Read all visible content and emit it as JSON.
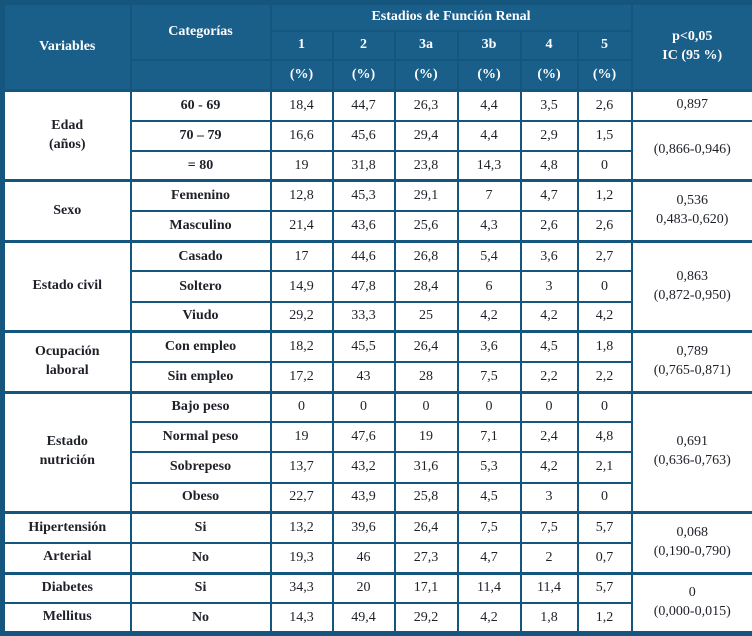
{
  "colors": {
    "header_fill": "#1A5E8A",
    "grid_border": "#15567E",
    "cell_text": "#1E2128",
    "header_text": "#FFFFFF"
  },
  "table": {
    "header": {
      "variables": "Variables",
      "categories": "Categorías",
      "stages_title": "Estadios de Función Renal",
      "stage_cols": [
        "1",
        "2",
        "3a",
        "3b",
        "4",
        "5"
      ],
      "percent_label": "(%)",
      "p_line1": "p<0,05",
      "p_line2": "IC (95 %)"
    },
    "groups": [
      {
        "variable_cells": [
          {
            "lines": [
              "Edad",
              "(años)"
            ],
            "rowspan": 3
          }
        ],
        "rows": [
          {
            "category": "60 - 69",
            "values": [
              "18,4",
              "44,7",
              "26,3",
              "4,4",
              "3,5",
              "2,6"
            ]
          },
          {
            "category": "70 – 79",
            "values": [
              "16,6",
              "45,6",
              "29,4",
              "4,4",
              "2,9",
              "1,5"
            ]
          },
          {
            "category": "= 80",
            "values": [
              "19",
              "31,8",
              "23,8",
              "14,3",
              "4,8",
              "0"
            ]
          }
        ],
        "p_cells": [
          {
            "lines": [
              "0,897"
            ],
            "rowspan": 1
          },
          {
            "lines": [
              "(0,866-0,946)"
            ],
            "rowspan": 2
          }
        ]
      },
      {
        "variable_cells": [
          {
            "lines": [
              "Sexo"
            ],
            "rowspan": 2
          }
        ],
        "rows": [
          {
            "category": "Femenino",
            "values": [
              "12,8",
              "45,3",
              "29,1",
              "7",
              "4,7",
              "1,2"
            ]
          },
          {
            "category": "Masculino",
            "values": [
              "21,4",
              "43,6",
              "25,6",
              "4,3",
              "2,6",
              "2,6"
            ]
          }
        ],
        "p_cells": [
          {
            "lines": [
              "0,536",
              "0,483-0,620)"
            ],
            "rowspan": 2
          }
        ]
      },
      {
        "variable_cells": [
          {
            "lines": [
              "Estado civil"
            ],
            "rowspan": 3
          }
        ],
        "rows": [
          {
            "category": "Casado",
            "values": [
              "17",
              "44,6",
              "26,8",
              "5,4",
              "3,6",
              "2,7"
            ]
          },
          {
            "category": "Soltero",
            "values": [
              "14,9",
              "47,8",
              "28,4",
              "6",
              "3",
              "0"
            ]
          },
          {
            "category": "Viudo",
            "values": [
              "29,2",
              "33,3",
              "25",
              "4,2",
              "4,2",
              "4,2"
            ]
          }
        ],
        "p_cells": [
          {
            "lines": [
              "0,863",
              "(0,872-0,950)"
            ],
            "rowspan": 3
          }
        ]
      },
      {
        "variable_cells": [
          {
            "lines": [
              "Ocupación",
              "laboral"
            ],
            "rowspan": 2
          }
        ],
        "rows": [
          {
            "category": "Con empleo",
            "values": [
              "18,2",
              "45,5",
              "26,4",
              "3,6",
              "4,5",
              "1,8"
            ]
          },
          {
            "category": "Sin empleo",
            "values": [
              "17,2",
              "43",
              "28",
              "7,5",
              "2,2",
              "2,2"
            ]
          }
        ],
        "p_cells": [
          {
            "lines": [
              "0,789",
              "(0,765-0,871)"
            ],
            "rowspan": 2
          }
        ]
      },
      {
        "variable_cells": [
          {
            "lines": [
              "Estado",
              "nutrición"
            ],
            "rowspan": 4
          }
        ],
        "rows": [
          {
            "category": "Bajo peso",
            "values": [
              "0",
              "0",
              "0",
              "0",
              "0",
              "0"
            ]
          },
          {
            "category": "Normal peso",
            "values": [
              "19",
              "47,6",
              "19",
              "7,1",
              "2,4",
              "4,8"
            ]
          },
          {
            "category": "Sobrepeso",
            "values": [
              "13,7",
              "43,2",
              "31,6",
              "5,3",
              "4,2",
              "2,1"
            ]
          },
          {
            "category": "Obeso",
            "values": [
              "22,7",
              "43,9",
              "25,8",
              "4,5",
              "3",
              "0"
            ]
          }
        ],
        "p_cells": [
          {
            "lines": [
              "0,691",
              "(0,636-0,763)"
            ],
            "rowspan": 4
          }
        ]
      },
      {
        "variable_cells": [
          {
            "lines": [
              "Hipertensión"
            ],
            "rowspan": 1
          },
          {
            "lines": [
              "Arterial"
            ],
            "rowspan": 1
          }
        ],
        "rows": [
          {
            "category": "Si",
            "values": [
              "13,2",
              "39,6",
              "26,4",
              "7,5",
              "7,5",
              "5,7"
            ]
          },
          {
            "category": "No",
            "values": [
              "19,3",
              "46",
              "27,3",
              "4,7",
              "2",
              "0,7"
            ]
          }
        ],
        "p_cells": [
          {
            "lines": [
              "0,068",
              "(0,190-0,790)"
            ],
            "rowspan": 2
          }
        ]
      },
      {
        "variable_cells": [
          {
            "lines": [
              "Diabetes"
            ],
            "rowspan": 1
          },
          {
            "lines": [
              "Mellitus"
            ],
            "rowspan": 1
          }
        ],
        "rows": [
          {
            "category": "Si",
            "values": [
              "34,3",
              "20",
              "17,1",
              "11,4",
              "11,4",
              "5,7"
            ]
          },
          {
            "category": "No",
            "values": [
              "14,3",
              "49,4",
              "29,2",
              "4,2",
              "1,8",
              "1,2"
            ]
          }
        ],
        "p_cells": [
          {
            "lines": [
              "0",
              "(0,000-0,015)"
            ],
            "rowspan": 2
          }
        ]
      }
    ]
  }
}
